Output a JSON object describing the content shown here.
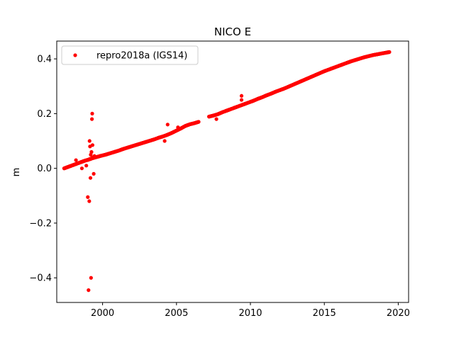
{
  "chart_data": {
    "type": "scatter",
    "title": "NICO E",
    "xlabel": "",
    "ylabel": "m",
    "xlim": [
      1996.9,
      2020.7
    ],
    "ylim": [
      -0.49,
      0.465
    ],
    "xticks": [
      2000,
      2005,
      2010,
      2015,
      2020
    ],
    "yticks": [
      -0.4,
      -0.2,
      0.0,
      0.2,
      0.4
    ],
    "xtick_labels": [
      "2000",
      "2005",
      "2010",
      "2015",
      "2020"
    ],
    "ytick_labels": [
      "−0.4",
      "−0.2",
      "0.0",
      "0.2",
      "0.4"
    ],
    "grid": false,
    "legend_position": "top-left",
    "series": [
      {
        "name": "repro2018a (IGS14)",
        "color": "#ff0000",
        "marker": "point",
        "x": [
          1997.4,
          1997.6,
          1997.8,
          1998.0,
          1998.2,
          1998.4,
          1998.6,
          1998.8,
          1999.0,
          1999.1,
          1999.2,
          1999.3,
          1999.5,
          1999.7,
          1999.9,
          2000.2,
          2000.5,
          2000.8,
          2001.1,
          2001.4,
          2001.7,
          2002.0,
          2002.3,
          2002.6,
          2002.9,
          2003.2,
          2003.5,
          2003.8,
          2004.1,
          2004.4,
          2004.7,
          2005.0,
          2005.3,
          2005.6,
          2005.9,
          2006.2,
          2006.5,
          2007.2,
          2007.5,
          2007.8,
          2008.1,
          2008.4,
          2008.7,
          2009.0,
          2009.3,
          2009.6,
          2009.9,
          2010.2,
          2010.5,
          2010.8,
          2011.1,
          2011.4,
          2011.7,
          2012.0,
          2012.3,
          2012.6,
          2012.9,
          2013.2,
          2013.5,
          2013.8,
          2014.1,
          2014.4,
          2014.7,
          2015.0,
          2015.3,
          2015.6,
          2015.9,
          2016.2,
          2016.5,
          2016.8,
          2017.1,
          2017.4,
          2017.7,
          2018.0,
          2018.3,
          2018.6,
          2018.9,
          2019.2,
          2019.4,
          1998.2,
          1998.6,
          1998.9,
          1999.0,
          1999.05,
          1999.1,
          1999.12,
          1999.15,
          1999.18,
          1999.2,
          1999.22,
          1999.25,
          1999.28,
          1999.3,
          1999.32,
          1999.35,
          1999.4,
          1999.45,
          2004.2,
          2004.4,
          2005.1,
          2007.7,
          2009.4,
          2009.4
        ],
        "y": [
          0.0,
          0.004,
          0.008,
          0.012,
          0.016,
          0.02,
          0.024,
          0.028,
          0.031,
          0.033,
          0.035,
          0.037,
          0.04,
          0.043,
          0.046,
          0.05,
          0.055,
          0.06,
          0.065,
          0.071,
          0.076,
          0.081,
          0.086,
          0.091,
          0.096,
          0.101,
          0.106,
          0.112,
          0.117,
          0.123,
          0.13,
          0.138,
          0.146,
          0.155,
          0.161,
          0.165,
          0.17,
          0.189,
          0.193,
          0.198,
          0.205,
          0.211,
          0.217,
          0.223,
          0.229,
          0.235,
          0.241,
          0.247,
          0.254,
          0.26,
          0.267,
          0.273,
          0.28,
          0.286,
          0.292,
          0.299,
          0.306,
          0.313,
          0.32,
          0.327,
          0.334,
          0.341,
          0.348,
          0.355,
          0.361,
          0.367,
          0.373,
          0.379,
          0.385,
          0.391,
          0.396,
          0.401,
          0.406,
          0.41,
          0.414,
          0.417,
          0.42,
          0.423,
          0.425,
          0.03,
          0.0,
          0.01,
          -0.105,
          -0.445,
          -0.12,
          0.1,
          0.08,
          -0.035,
          0.05,
          -0.4,
          0.06,
          0.18,
          0.2,
          0.085,
          0.04,
          -0.02,
          0.045,
          0.1,
          0.16,
          0.15,
          0.18,
          0.265,
          0.25
        ]
      }
    ]
  }
}
